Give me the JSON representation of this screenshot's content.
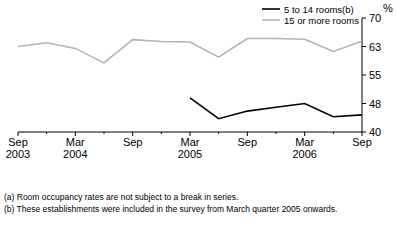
{
  "chart_data": {
    "type": "line",
    "y_label": "%",
    "categories": [
      "Sep 2003",
      null,
      "Mar 2004",
      null,
      "Sep",
      null,
      "Mar 2005",
      null,
      "Sep",
      null,
      "Mar 2006",
      null,
      "Sep"
    ],
    "series": [
      {
        "name": "5 to 14 rooms(b)",
        "color": "#000000",
        "values": [
          null,
          null,
          null,
          null,
          null,
          null,
          49,
          43.5,
          45.5,
          46.5,
          47.5,
          44,
          44.5
        ]
      },
      {
        "name": "15 or more rooms",
        "color": "#b3b3b3",
        "values": [
          62.5,
          63.5,
          62,
          58.2,
          64.3,
          63.8,
          63.7,
          59.7,
          64.6,
          64.6,
          64.4,
          61.2,
          63.9
        ]
      }
    ],
    "ylim": [
      40,
      70
    ],
    "yticks": [
      40,
      {
        "value": 47.5,
        "label": "48"
      },
      55,
      {
        "value": 62.5,
        "label": "63"
      },
      70
    ],
    "legend": "top-right",
    "annotations": [
      "(a) Room occupancy rates are not subject to a break in series.",
      "(b) These establishments were included in the survey from March quarter 2005 onwards."
    ]
  }
}
